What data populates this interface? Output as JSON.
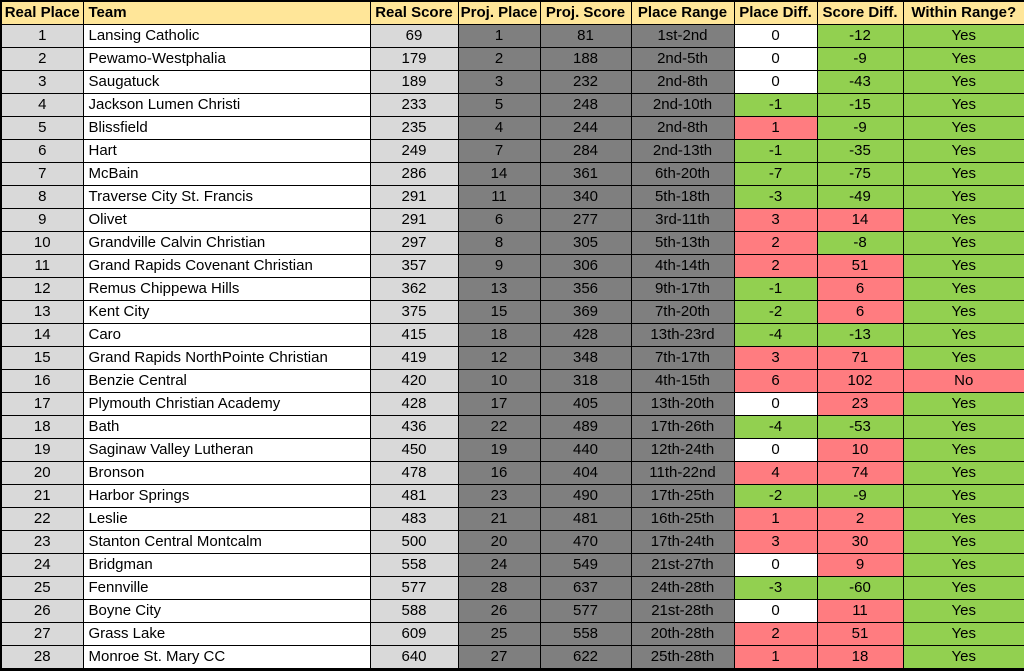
{
  "colors": {
    "header_bg": "#FFE699",
    "gray_column": "#7F7F7F",
    "light_gray_column": "#D9D9D9",
    "white": "#FFFFFF",
    "green": "#92D050",
    "red": "#FF7C80",
    "border": "#000000",
    "text": "#000000"
  },
  "table": {
    "headers": [
      "Real Place",
      "Team",
      "Real Score",
      "Proj. Place",
      "Proj. Score",
      "Place Range",
      "Place Diff.",
      "Score Diff.",
      "Within Range?"
    ],
    "rows": [
      {
        "real_place": "1",
        "team": "Lansing Catholic",
        "real_score": "69",
        "proj_place": "1",
        "proj_score": "81",
        "place_range": "1st-2nd",
        "place_diff": "0",
        "place_diff_color": "white",
        "score_diff": "-12",
        "score_diff_color": "green",
        "within_range": "Yes",
        "within_range_color": "green"
      },
      {
        "real_place": "2",
        "team": "Pewamo-Westphalia",
        "real_score": "179",
        "proj_place": "2",
        "proj_score": "188",
        "place_range": "2nd-5th",
        "place_diff": "0",
        "place_diff_color": "white",
        "score_diff": "-9",
        "score_diff_color": "green",
        "within_range": "Yes",
        "within_range_color": "green"
      },
      {
        "real_place": "3",
        "team": "Saugatuck",
        "real_score": "189",
        "proj_place": "3",
        "proj_score": "232",
        "place_range": "2nd-8th",
        "place_diff": "0",
        "place_diff_color": "white",
        "score_diff": "-43",
        "score_diff_color": "green",
        "within_range": "Yes",
        "within_range_color": "green"
      },
      {
        "real_place": "4",
        "team": "Jackson Lumen Christi",
        "real_score": "233",
        "proj_place": "5",
        "proj_score": "248",
        "place_range": "2nd-10th",
        "place_diff": "-1",
        "place_diff_color": "green",
        "score_diff": "-15",
        "score_diff_color": "green",
        "within_range": "Yes",
        "within_range_color": "green"
      },
      {
        "real_place": "5",
        "team": "Blissfield",
        "real_score": "235",
        "proj_place": "4",
        "proj_score": "244",
        "place_range": "2nd-8th",
        "place_diff": "1",
        "place_diff_color": "red",
        "score_diff": "-9",
        "score_diff_color": "green",
        "within_range": "Yes",
        "within_range_color": "green"
      },
      {
        "real_place": "6",
        "team": "Hart",
        "real_score": "249",
        "proj_place": "7",
        "proj_score": "284",
        "place_range": "2nd-13th",
        "place_diff": "-1",
        "place_diff_color": "green",
        "score_diff": "-35",
        "score_diff_color": "green",
        "within_range": "Yes",
        "within_range_color": "green"
      },
      {
        "real_place": "7",
        "team": "McBain",
        "real_score": "286",
        "proj_place": "14",
        "proj_score": "361",
        "place_range": "6th-20th",
        "place_diff": "-7",
        "place_diff_color": "green",
        "score_diff": "-75",
        "score_diff_color": "green",
        "within_range": "Yes",
        "within_range_color": "green"
      },
      {
        "real_place": "8",
        "team": "Traverse City St. Francis",
        "real_score": "291",
        "proj_place": "11",
        "proj_score": "340",
        "place_range": "5th-18th",
        "place_diff": "-3",
        "place_diff_color": "green",
        "score_diff": "-49",
        "score_diff_color": "green",
        "within_range": "Yes",
        "within_range_color": "green"
      },
      {
        "real_place": "9",
        "team": "Olivet",
        "real_score": "291",
        "proj_place": "6",
        "proj_score": "277",
        "place_range": "3rd-11th",
        "place_diff": "3",
        "place_diff_color": "red",
        "score_diff": "14",
        "score_diff_color": "red",
        "within_range": "Yes",
        "within_range_color": "green"
      },
      {
        "real_place": "10",
        "team": "Grandville Calvin Christian",
        "real_score": "297",
        "proj_place": "8",
        "proj_score": "305",
        "place_range": "5th-13th",
        "place_diff": "2",
        "place_diff_color": "red",
        "score_diff": "-8",
        "score_diff_color": "green",
        "within_range": "Yes",
        "within_range_color": "green"
      },
      {
        "real_place": "11",
        "team": "Grand Rapids Covenant Christian",
        "real_score": "357",
        "proj_place": "9",
        "proj_score": "306",
        "place_range": "4th-14th",
        "place_diff": "2",
        "place_diff_color": "red",
        "score_diff": "51",
        "score_diff_color": "red",
        "within_range": "Yes",
        "within_range_color": "green"
      },
      {
        "real_place": "12",
        "team": "Remus Chippewa Hills",
        "real_score": "362",
        "proj_place": "13",
        "proj_score": "356",
        "place_range": "9th-17th",
        "place_diff": "-1",
        "place_diff_color": "green",
        "score_diff": "6",
        "score_diff_color": "red",
        "within_range": "Yes",
        "within_range_color": "green"
      },
      {
        "real_place": "13",
        "team": "Kent City",
        "real_score": "375",
        "proj_place": "15",
        "proj_score": "369",
        "place_range": "7th-20th",
        "place_diff": "-2",
        "place_diff_color": "green",
        "score_diff": "6",
        "score_diff_color": "red",
        "within_range": "Yes",
        "within_range_color": "green"
      },
      {
        "real_place": "14",
        "team": "Caro",
        "real_score": "415",
        "proj_place": "18",
        "proj_score": "428",
        "place_range": "13th-23rd",
        "place_diff": "-4",
        "place_diff_color": "green",
        "score_diff": "-13",
        "score_diff_color": "green",
        "within_range": "Yes",
        "within_range_color": "green"
      },
      {
        "real_place": "15",
        "team": "Grand Rapids NorthPointe Christian",
        "real_score": "419",
        "proj_place": "12",
        "proj_score": "348",
        "place_range": "7th-17th",
        "place_diff": "3",
        "place_diff_color": "red",
        "score_diff": "71",
        "score_diff_color": "red",
        "within_range": "Yes",
        "within_range_color": "green"
      },
      {
        "real_place": "16",
        "team": "Benzie Central",
        "real_score": "420",
        "proj_place": "10",
        "proj_score": "318",
        "place_range": "4th-15th",
        "place_diff": "6",
        "place_diff_color": "red",
        "score_diff": "102",
        "score_diff_color": "red",
        "within_range": "No",
        "within_range_color": "red"
      },
      {
        "real_place": "17",
        "team": "Plymouth Christian Academy",
        "real_score": "428",
        "proj_place": "17",
        "proj_score": "405",
        "place_range": "13th-20th",
        "place_diff": "0",
        "place_diff_color": "white",
        "score_diff": "23",
        "score_diff_color": "red",
        "within_range": "Yes",
        "within_range_color": "green"
      },
      {
        "real_place": "18",
        "team": "Bath",
        "real_score": "436",
        "proj_place": "22",
        "proj_score": "489",
        "place_range": "17th-26th",
        "place_diff": "-4",
        "place_diff_color": "green",
        "score_diff": "-53",
        "score_diff_color": "green",
        "within_range": "Yes",
        "within_range_color": "green"
      },
      {
        "real_place": "19",
        "team": "Saginaw Valley Lutheran",
        "real_score": "450",
        "proj_place": "19",
        "proj_score": "440",
        "place_range": "12th-24th",
        "place_diff": "0",
        "place_diff_color": "white",
        "score_diff": "10",
        "score_diff_color": "red",
        "within_range": "Yes",
        "within_range_color": "green"
      },
      {
        "real_place": "20",
        "team": "Bronson",
        "real_score": "478",
        "proj_place": "16",
        "proj_score": "404",
        "place_range": "11th-22nd",
        "place_diff": "4",
        "place_diff_color": "red",
        "score_diff": "74",
        "score_diff_color": "red",
        "within_range": "Yes",
        "within_range_color": "green"
      },
      {
        "real_place": "21",
        "team": "Harbor Springs",
        "real_score": "481",
        "proj_place": "23",
        "proj_score": "490",
        "place_range": "17th-25th",
        "place_diff": "-2",
        "place_diff_color": "green",
        "score_diff": "-9",
        "score_diff_color": "green",
        "within_range": "Yes",
        "within_range_color": "green"
      },
      {
        "real_place": "22",
        "team": "Leslie",
        "real_score": "483",
        "proj_place": "21",
        "proj_score": "481",
        "place_range": "16th-25th",
        "place_diff": "1",
        "place_diff_color": "red",
        "score_diff": "2",
        "score_diff_color": "red",
        "within_range": "Yes",
        "within_range_color": "green"
      },
      {
        "real_place": "23",
        "team": "Stanton Central Montcalm",
        "real_score": "500",
        "proj_place": "20",
        "proj_score": "470",
        "place_range": "17th-24th",
        "place_diff": "3",
        "place_diff_color": "red",
        "score_diff": "30",
        "score_diff_color": "red",
        "within_range": "Yes",
        "within_range_color": "green"
      },
      {
        "real_place": "24",
        "team": "Bridgman",
        "real_score": "558",
        "proj_place": "24",
        "proj_score": "549",
        "place_range": "21st-27th",
        "place_diff": "0",
        "place_diff_color": "white",
        "score_diff": "9",
        "score_diff_color": "red",
        "within_range": "Yes",
        "within_range_color": "green"
      },
      {
        "real_place": "25",
        "team": "Fennville",
        "real_score": "577",
        "proj_place": "28",
        "proj_score": "637",
        "place_range": "24th-28th",
        "place_diff": "-3",
        "place_diff_color": "green",
        "score_diff": "-60",
        "score_diff_color": "green",
        "within_range": "Yes",
        "within_range_color": "green"
      },
      {
        "real_place": "26",
        "team": "Boyne City",
        "real_score": "588",
        "proj_place": "26",
        "proj_score": "577",
        "place_range": "21st-28th",
        "place_diff": "0",
        "place_diff_color": "white",
        "score_diff": "11",
        "score_diff_color": "red",
        "within_range": "Yes",
        "within_range_color": "green"
      },
      {
        "real_place": "27",
        "team": "Grass Lake",
        "real_score": "609",
        "proj_place": "25",
        "proj_score": "558",
        "place_range": "20th-28th",
        "place_diff": "2",
        "place_diff_color": "red",
        "score_diff": "51",
        "score_diff_color": "red",
        "within_range": "Yes",
        "within_range_color": "green"
      },
      {
        "real_place": "28",
        "team": "Monroe St. Mary CC",
        "real_score": "640",
        "proj_place": "27",
        "proj_score": "622",
        "place_range": "25th-28th",
        "place_diff": "1",
        "place_diff_color": "red",
        "score_diff": "18",
        "score_diff_color": "red",
        "within_range": "Yes",
        "within_range_color": "green"
      }
    ]
  }
}
